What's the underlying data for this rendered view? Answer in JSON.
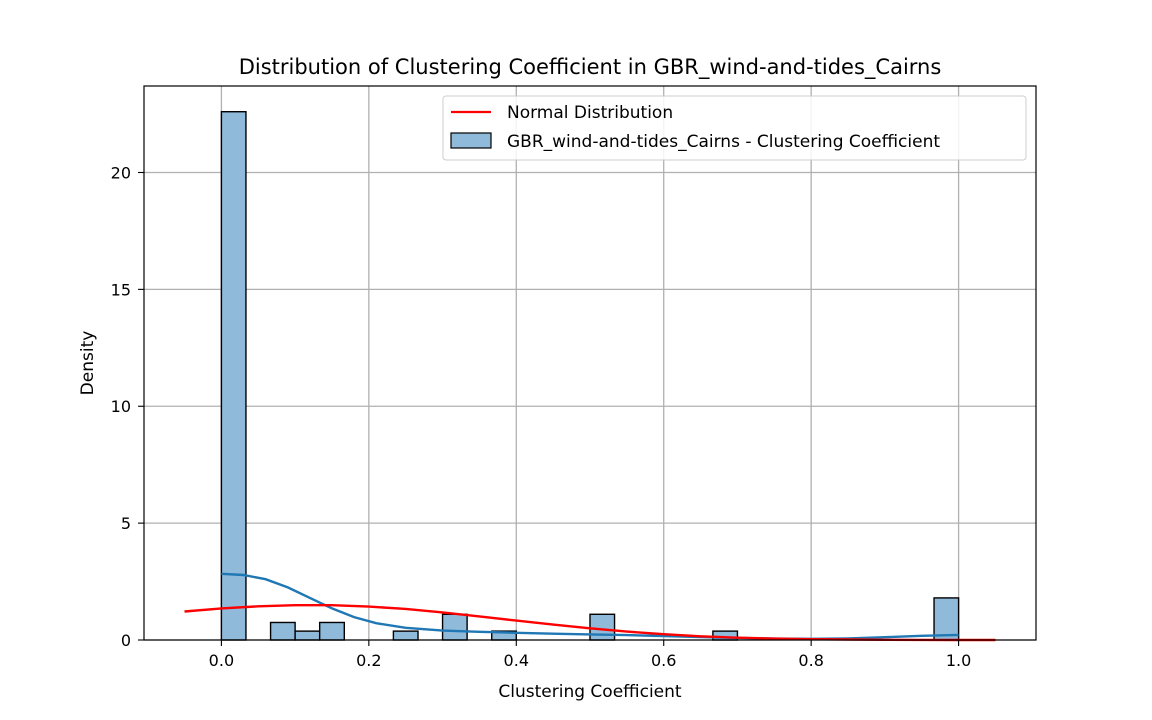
{
  "chart_data": {
    "type": "histogram",
    "title": "Distribution of Clustering Coefficient in GBR_wind-and-tides_Cairns",
    "xlabel": "Clustering Coefficient",
    "ylabel": "Density",
    "xlim": [
      -0.105,
      1.105
    ],
    "ylim": [
      0,
      23.7
    ],
    "xticks": [
      0.0,
      0.2,
      0.4,
      0.6,
      0.8,
      1.0
    ],
    "xtick_labels": [
      "0.0",
      "0.2",
      "0.4",
      "0.6",
      "0.8",
      "1.0"
    ],
    "yticks": [
      0,
      5,
      10,
      15,
      20
    ],
    "ytick_labels": [
      "0",
      "5",
      "10",
      "15",
      "20"
    ],
    "grid": true,
    "legend_position": "top-right",
    "histogram": {
      "name": "GBR_wind-and-tides_Cairns - Clustering Coefficient",
      "color": "#8fbad9",
      "edge_color": "#000000",
      "bins": [
        {
          "x0": 0.0,
          "x1": 0.0333,
          "density": 22.6
        },
        {
          "x0": 0.0667,
          "x1": 0.1,
          "density": 0.75
        },
        {
          "x0": 0.1,
          "x1": 0.1333,
          "density": 0.38
        },
        {
          "x0": 0.1333,
          "x1": 0.1667,
          "density": 0.75
        },
        {
          "x0": 0.2333,
          "x1": 0.2667,
          "density": 0.38
        },
        {
          "x0": 0.3,
          "x1": 0.3333,
          "density": 1.1
        },
        {
          "x0": 0.3667,
          "x1": 0.4,
          "density": 0.38
        },
        {
          "x0": 0.5,
          "x1": 0.5333,
          "density": 1.1
        },
        {
          "x0": 0.6667,
          "x1": 0.7,
          "density": 0.38
        },
        {
          "x0": 0.9667,
          "x1": 1.0,
          "density": 1.8
        }
      ]
    },
    "kde": {
      "color": "#1f77b4",
      "x": [
        0.0,
        0.03,
        0.06,
        0.09,
        0.12,
        0.15,
        0.18,
        0.21,
        0.25,
        0.3,
        0.35,
        0.4,
        0.45,
        0.5,
        0.55,
        0.6,
        0.65,
        0.7,
        0.75,
        0.8,
        0.85,
        0.9,
        0.95,
        1.0
      ],
      "y": [
        2.83,
        2.78,
        2.6,
        2.25,
        1.8,
        1.35,
        0.98,
        0.72,
        0.52,
        0.4,
        0.35,
        0.31,
        0.27,
        0.24,
        0.21,
        0.17,
        0.13,
        0.09,
        0.06,
        0.05,
        0.07,
        0.12,
        0.18,
        0.22
      ]
    },
    "series": [
      {
        "name": "Normal Distribution",
        "color": "#ff0000",
        "x": [
          -0.05,
          0.0,
          0.05,
          0.1,
          0.15,
          0.2,
          0.25,
          0.3,
          0.35,
          0.4,
          0.45,
          0.5,
          0.55,
          0.6,
          0.65,
          0.7,
          0.75,
          0.8,
          0.85,
          0.9,
          0.95,
          1.0,
          1.05
        ],
        "y": [
          1.22,
          1.35,
          1.44,
          1.49,
          1.49,
          1.43,
          1.33,
          1.18,
          1.01,
          0.83,
          0.66,
          0.5,
          0.36,
          0.25,
          0.16,
          0.1,
          0.06,
          0.035,
          0.02,
          0.01,
          0.005,
          0.002,
          0.001
        ]
      }
    ],
    "legend": [
      {
        "label": "Normal Distribution",
        "kind": "line",
        "color": "#ff0000"
      },
      {
        "label": "GBR_wind-and-tides_Cairns - Clustering Coefficient",
        "kind": "patch",
        "color": "#8fbad9"
      }
    ]
  }
}
